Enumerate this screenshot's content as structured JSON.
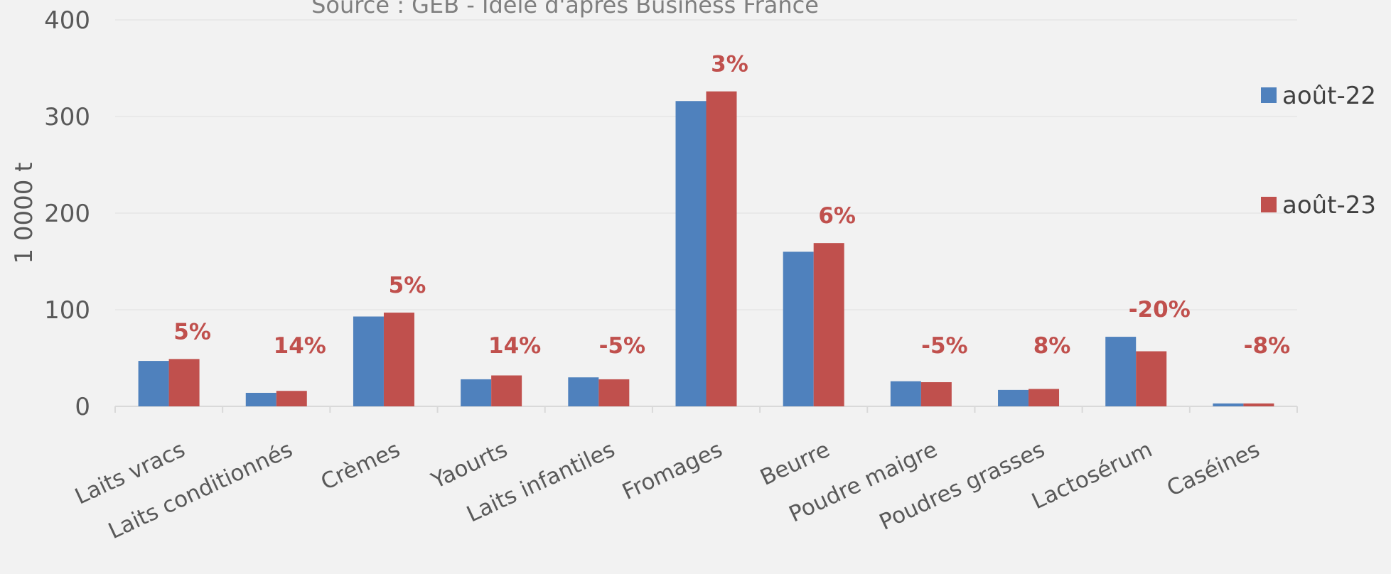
{
  "chart_data": {
    "type": "bar",
    "subtitle": "Source : GEB - Idele d'après Business France",
    "ylabel": "1 0000 t",
    "xlabel": "",
    "ylim": [
      0,
      400
    ],
    "yticks": [
      0,
      100,
      200,
      300,
      400
    ],
    "grid": true,
    "legend_position": "right",
    "categories": [
      "Laits vracs",
      "Laits conditionnés",
      "Crèmes",
      "Yaourts",
      "Laits infantiles",
      "Fromages",
      "Beurre",
      "Poudre maigre",
      "Poudres grasses",
      "Lactosérum",
      "Caséines"
    ],
    "series": [
      {
        "name": "août-22",
        "color": "#4f81bd",
        "values": [
          47,
          14,
          93,
          28,
          30,
          316,
          160,
          26,
          17,
          72,
          3
        ]
      },
      {
        "name": "août-23",
        "color": "#c0504d",
        "values": [
          49,
          16,
          97,
          32,
          28,
          326,
          169,
          25,
          18,
          57,
          3
        ]
      }
    ],
    "annotations": [
      "5%",
      "14%",
      "5%",
      "14%",
      "-5%",
      "3%",
      "6%",
      "-5%",
      "8%",
      "-20%",
      "-8%"
    ],
    "annotation_color": "#c0504d"
  }
}
